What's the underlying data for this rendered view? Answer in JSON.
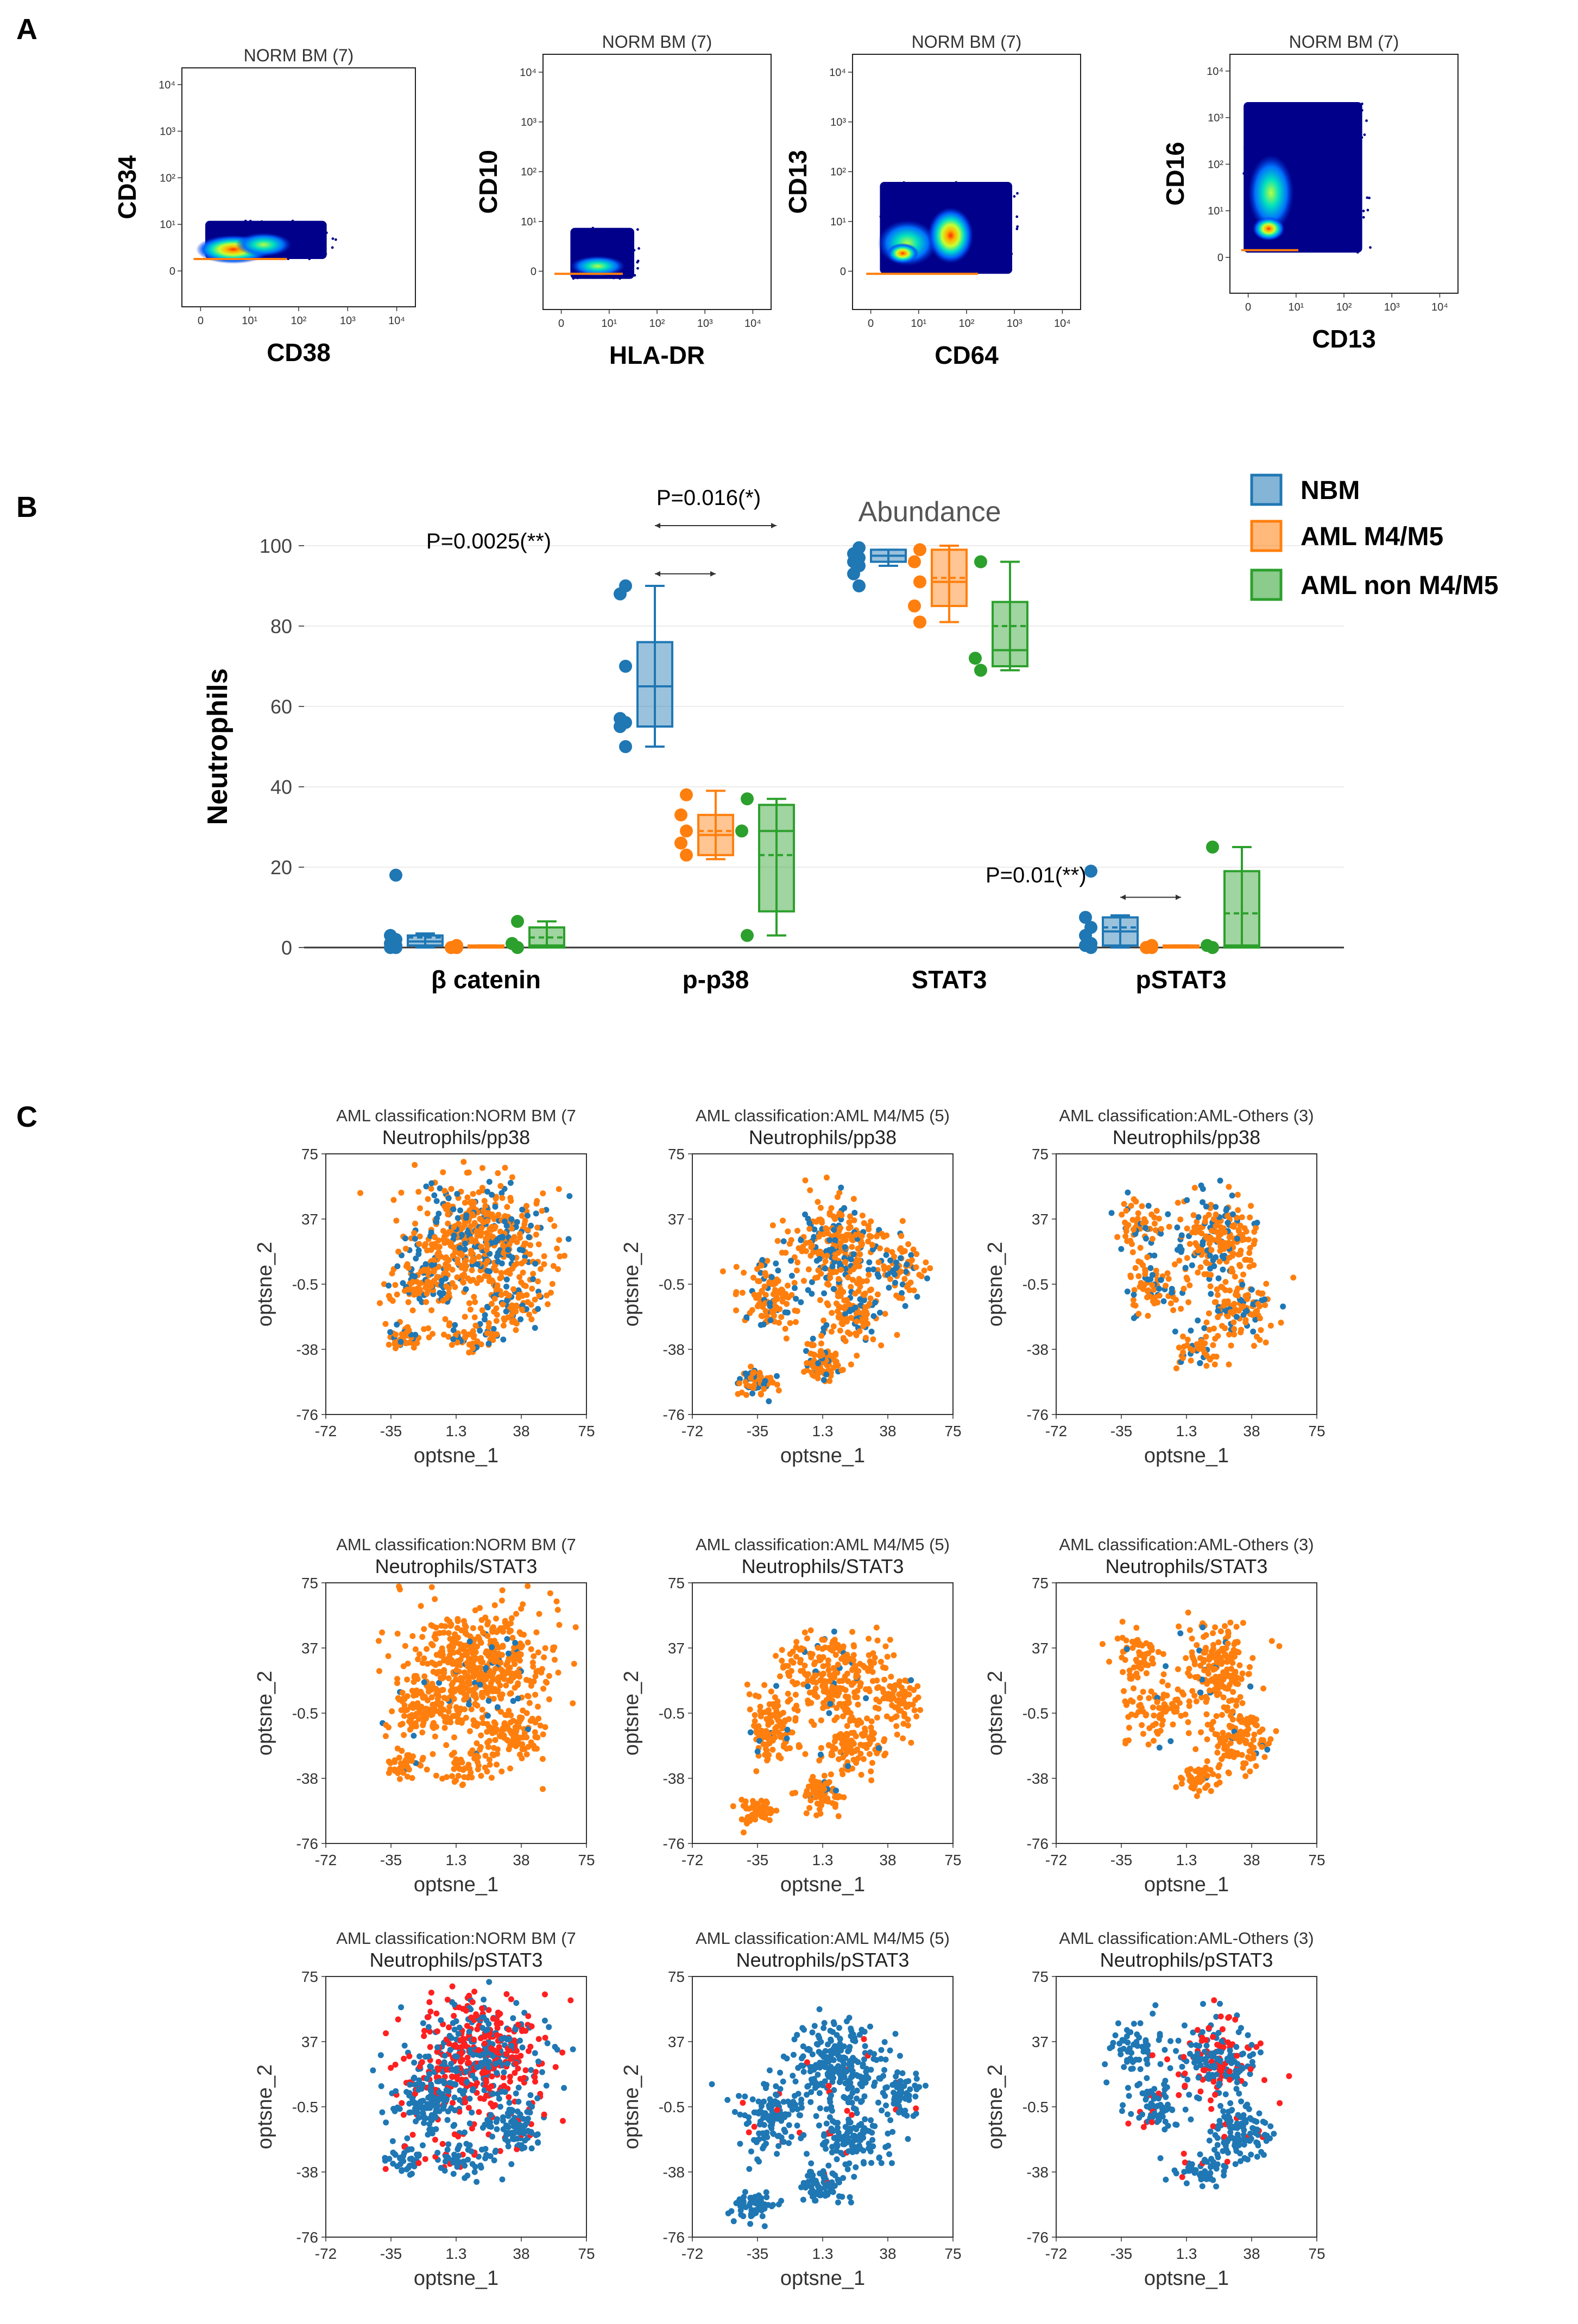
{
  "panels": {
    "a": "A",
    "b": "B",
    "c": "C"
  },
  "colors": {
    "nbm": "#1f77b4",
    "m45": "#ff7f0e",
    "non": "#2ca02c",
    "red": "#ff2020",
    "navy": "#00008b"
  },
  "panel_a": [
    {
      "title": "NORM BM  (7)",
      "xlabel": "CD38",
      "ylabel": "CD34",
      "xticks": [
        "0",
        "10¹",
        "10²",
        "10³",
        "10⁴"
      ],
      "yticks": [
        "0",
        "10¹",
        "10²",
        "10³",
        "10⁴"
      ]
    },
    {
      "title": "NORM BM  (7)",
      "xlabel": "HLA-DR",
      "ylabel": "CD10",
      "xticks": [
        "0",
        "10¹",
        "10²",
        "10³",
        "10⁴"
      ],
      "yticks": [
        "0",
        "10¹",
        "10²",
        "10³",
        "10⁴"
      ]
    },
    {
      "title": "NORM BM  (7)",
      "xlabel": "CD64",
      "ylabel": "CD13",
      "xticks": [
        "0",
        "10¹",
        "10²",
        "10³",
        "10⁴"
      ],
      "yticks": [
        "0",
        "10¹",
        "10²",
        "10³",
        "10⁴"
      ]
    },
    {
      "title": "NORM BM  (7)",
      "xlabel": "CD13",
      "ylabel": "CD16",
      "xticks": [
        "0",
        "10¹",
        "10²",
        "10³",
        "10⁴"
      ],
      "yticks": [
        "0",
        "10¹",
        "10²",
        "10³",
        "10⁴"
      ]
    }
  ],
  "panel_c": {
    "row_titles": [
      "AML classification:NORM BM  (7",
      "AML classification:AML M4/M5  (5)",
      "AML classification:AML-Others  (3)"
    ],
    "row_subtitles": [
      "Neutrophils/pp38",
      "Neutrophils/STAT3",
      "Neutrophils/pSTAT3"
    ],
    "xlabel": "optsne_1",
    "ylabel": "optsne_2",
    "xticks": [
      "-72",
      "-35",
      "1.3",
      "38",
      "75"
    ],
    "yticks": [
      "75",
      "37",
      "-0.5",
      "-38",
      "-76"
    ]
  },
  "chart_data": {
    "type": "box",
    "title": "Abundance",
    "ylabel": "Neutrophils",
    "ylim": [
      0,
      100
    ],
    "yticks": [
      0,
      20,
      40,
      60,
      80,
      100
    ],
    "categories": [
      "β catenin",
      "p-p38",
      "STAT3",
      "pSTAT3"
    ],
    "series": [
      {
        "name": "NBM",
        "color": "#1f77b4",
        "boxes": [
          {
            "q1": 0.5,
            "median": 1.5,
            "q3": 3,
            "mean": 2.5,
            "min": 0,
            "max": 3.5,
            "points": [
              18,
              3,
              2,
              1,
              0.5,
              0,
              0
            ]
          },
          {
            "q1": 55,
            "median": 65,
            "q3": 76,
            "mean": 65,
            "min": 50,
            "max": 90,
            "points": [
              90,
              88,
              70,
              57,
              56,
              55,
              50
            ]
          },
          {
            "q1": 96,
            "median": 97.5,
            "q3": 99,
            "mean": 97.5,
            "min": 95,
            "max": 99,
            "points": [
              99.5,
              98,
              97,
              96,
              95,
              93,
              90
            ]
          },
          {
            "q1": 0.5,
            "median": 4,
            "q3": 7.5,
            "mean": 5,
            "min": 0,
            "max": 8,
            "points": [
              19,
              7.5,
              5,
              3,
              1,
              0.5,
              0
            ]
          }
        ]
      },
      {
        "name": "AML M4/M5",
        "color": "#ff7f0e",
        "boxes": [
          {
            "q1": 0,
            "median": 0,
            "q3": 0.5,
            "mean": 0.3,
            "min": 0,
            "max": 0.5,
            "points": [
              0.5,
              0,
              0,
              0,
              0
            ]
          },
          {
            "q1": 23,
            "median": 28,
            "q3": 33,
            "mean": 29,
            "min": 22,
            "max": 39,
            "points": [
              38,
              33,
              29,
              26,
              23
            ]
          },
          {
            "q1": 85,
            "median": 91,
            "q3": 99,
            "mean": 92,
            "min": 81,
            "max": 100,
            "points": [
              99,
              96,
              91,
              85,
              81
            ]
          },
          {
            "q1": 0,
            "median": 0,
            "q3": 0.5,
            "mean": 0.3,
            "min": 0,
            "max": 0.5,
            "points": [
              0.5,
              0,
              0,
              0,
              0
            ]
          }
        ]
      },
      {
        "name": "AML non M4/M5",
        "color": "#2ca02c",
        "boxes": [
          {
            "q1": 0,
            "median": 0.5,
            "q3": 5,
            "mean": 2.5,
            "min": 0,
            "max": 6.5,
            "points": [
              6.5,
              1,
              0
            ]
          },
          {
            "q1": 9,
            "median": 29,
            "q3": 35.5,
            "mean": 23,
            "min": 3,
            "max": 37,
            "points": [
              37,
              29,
              3
            ]
          },
          {
            "q1": 70,
            "median": 74,
            "q3": 86,
            "mean": 80,
            "min": 69,
            "max": 96,
            "points": [
              96,
              72,
              69
            ]
          },
          {
            "q1": 0,
            "median": 0.5,
            "q3": 19,
            "mean": 8.5,
            "min": 0,
            "max": 25,
            "points": [
              25,
              0.5,
              0
            ]
          }
        ]
      }
    ],
    "annotations": [
      {
        "text": "P=0.016(*)",
        "category": 1,
        "from_series": 0,
        "to_series": 2,
        "y_value": 105
      },
      {
        "text": "P=0.0025(**)",
        "category": 1,
        "from_series": 0,
        "to_series": 1,
        "y_value": 93
      },
      {
        "text": "P=0.01(**)",
        "category": 3,
        "from_series": 0,
        "to_series": 1,
        "y_value": 12.5
      }
    ]
  }
}
